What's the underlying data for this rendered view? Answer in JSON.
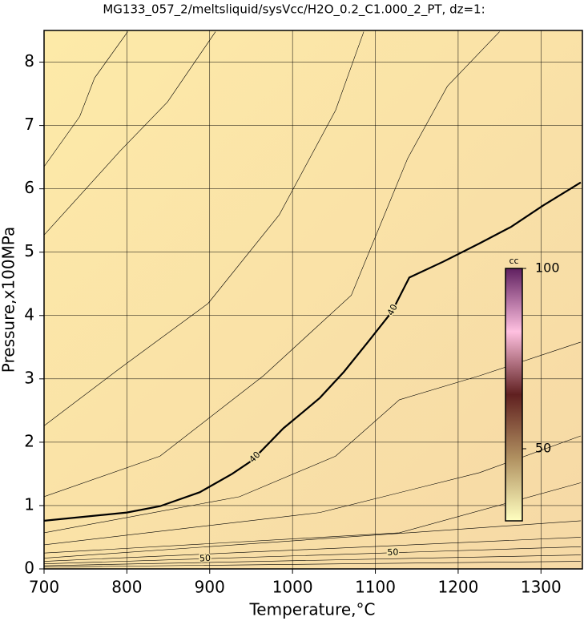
{
  "chart_data": {
    "type": "contour",
    "title": "MG133_057_2/meltsliquid/sysVcc/H2O_0.2_C1.000_2_PT, dz=1:",
    "x_label": "Temperature,°C",
    "y_label": "Pressure,x100MPa",
    "xlim": [
      700,
      1350
    ],
    "ylim": [
      0,
      8.5
    ],
    "xticks": [
      700,
      800,
      900,
      1000,
      1100,
      1200,
      1300
    ],
    "yticks": [
      0,
      1,
      2,
      3,
      4,
      5,
      6,
      7,
      8
    ],
    "grid": true,
    "series": [
      {
        "name": "40",
        "color": "#000000",
        "width": 2.2,
        "x": [
          700,
          800,
          840,
          888,
          927,
          951,
          989,
          1013,
          1033,
          1062,
          1091,
          1120,
          1141,
          1182,
          1226,
          1264,
          1303,
          1348
        ],
        "y": [
          0.76,
          0.89,
          0.99,
          1.21,
          1.5,
          1.71,
          2.22,
          2.48,
          2.7,
          3.11,
          3.58,
          4.06,
          4.6,
          4.85,
          5.14,
          5.4,
          5.74,
          6.1
        ]
      },
      {
        "color": "#000000",
        "width": 0.6,
        "x": [
          700,
          743,
          761,
          801
        ],
        "y": [
          6.35,
          7.14,
          7.75,
          8.48
        ]
      },
      {
        "color": "#000000",
        "width": 0.6,
        "x": [
          700,
          792,
          849,
          907
        ],
        "y": [
          5.27,
          6.6,
          7.37,
          8.48
        ]
      },
      {
        "color": "#000000",
        "width": 0.6,
        "x": [
          700,
          792,
          898,
          984,
          1052,
          1086
        ],
        "y": [
          2.26,
          3.17,
          4.19,
          5.59,
          7.24,
          8.48
        ]
      },
      {
        "color": "#000000",
        "width": 0.6,
        "x": [
          700,
          840,
          965,
          1071,
          1139,
          1187,
          1250
        ],
        "y": [
          1.14,
          1.78,
          3.05,
          4.32,
          6.48,
          7.62,
          8.48
        ]
      },
      {
        "color": "#000000",
        "width": 0.6,
        "x": [
          700,
          936,
          1052,
          1129,
          1226,
          1348
        ],
        "y": [
          0.57,
          1.14,
          1.78,
          2.67,
          3.05,
          3.58
        ]
      },
      {
        "color": "#000000",
        "width": 0.6,
        "x": [
          700,
          1033,
          1226,
          1348
        ],
        "y": [
          0.38,
          0.89,
          1.52,
          2.1
        ]
      },
      {
        "color": "#000000",
        "width": 0.6,
        "x": [
          700,
          1129,
          1348
        ],
        "y": [
          0.25,
          0.57,
          1.36
        ]
      },
      {
        "color": "#000000",
        "width": 0.6,
        "x": [
          700,
          1348
        ],
        "y": [
          0.17,
          0.76
        ]
      },
      {
        "color": "#000000",
        "width": 0.6,
        "x": [
          700,
          1348
        ],
        "y": [
          0.12,
          0.5
        ]
      },
      {
        "name": "50",
        "color": "#000000",
        "width": 0.6,
        "x": [
          700,
          1348
        ],
        "y": [
          0.08,
          0.35
        ]
      },
      {
        "color": "#000000",
        "width": 0.6,
        "x": [
          700,
          1348
        ],
        "y": [
          0.05,
          0.22
        ]
      },
      {
        "color": "#000000",
        "width": 0.6,
        "x": [
          700,
          1348
        ],
        "y": [
          0.03,
          0.12
        ]
      }
    ],
    "colorbar": {
      "label": "cc",
      "lim": [
        30,
        100
      ],
      "ticks": [
        50,
        100
      ],
      "colors": [
        "#ffffc0",
        "#b09060",
        "#602020",
        "#ffc0e0",
        "#602060"
      ]
    }
  }
}
